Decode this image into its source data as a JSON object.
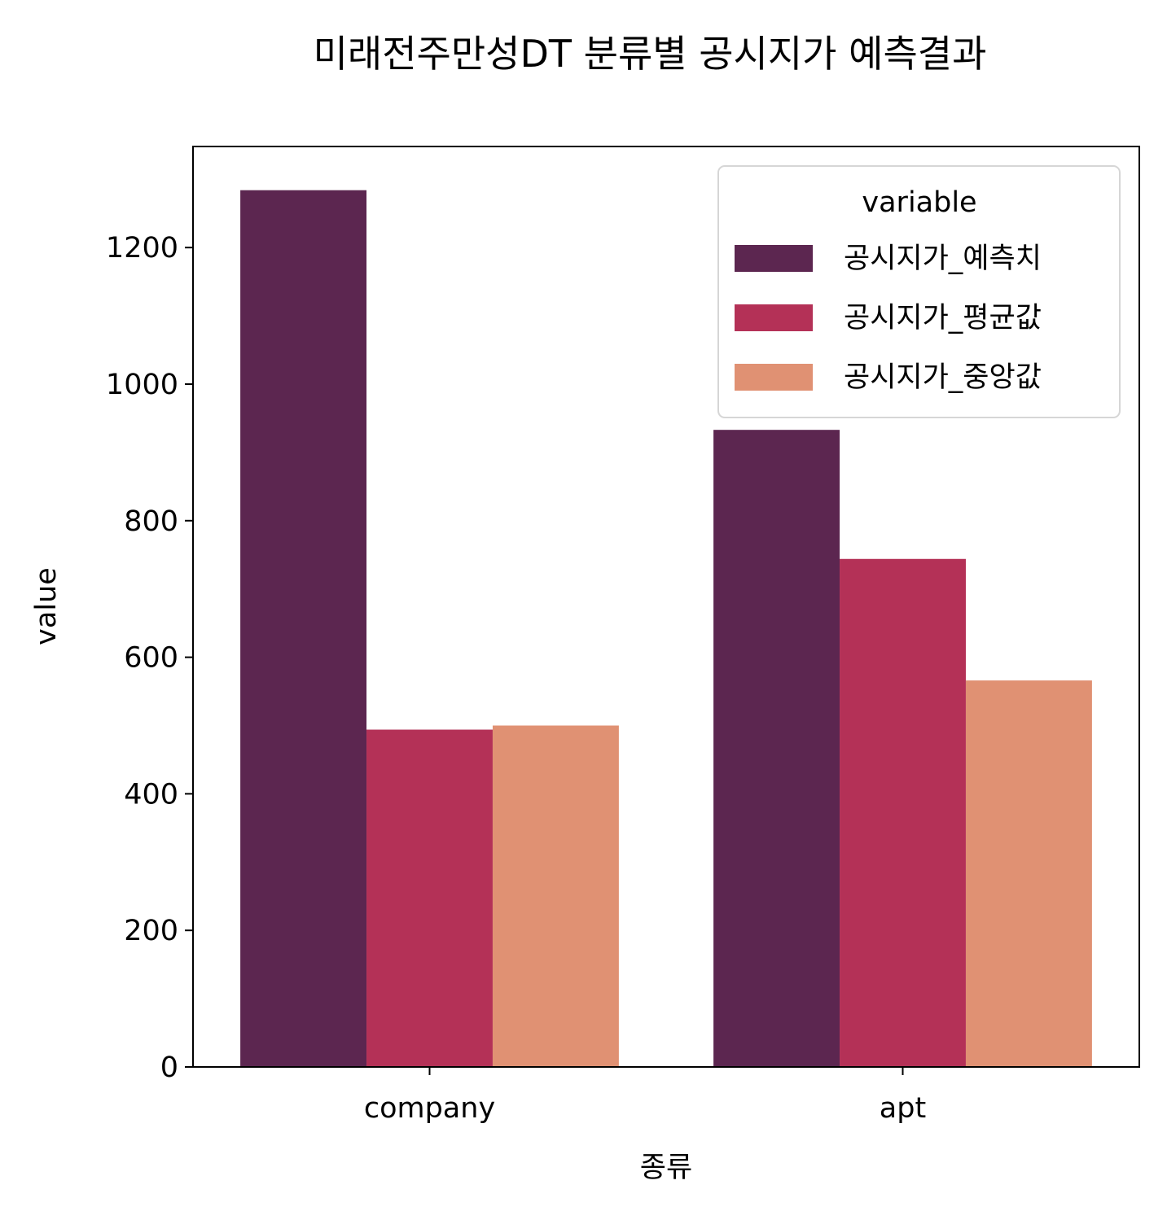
{
  "chart_data": {
    "type": "bar",
    "title": "미래전주만성DT 분류별 공시지가 예측결과",
    "xlabel": "종류",
    "ylabel": "value",
    "categories": [
      "company",
      "apt"
    ],
    "series": [
      {
        "name": "공시지가_예측치",
        "color": "#5c2650",
        "values": [
          1284,
          933
        ]
      },
      {
        "name": "공시지가_평균값",
        "color": "#b43157",
        "values": [
          494,
          744
        ]
      },
      {
        "name": "공시지가_중앙값",
        "color": "#e09173",
        "values": [
          500,
          566
        ]
      }
    ],
    "ylim": [
      0,
      1348
    ],
    "yticks": [
      0,
      200,
      400,
      600,
      800,
      1000,
      1200
    ],
    "legend": {
      "title": "variable",
      "placement": "top-right"
    },
    "grid": false
  }
}
